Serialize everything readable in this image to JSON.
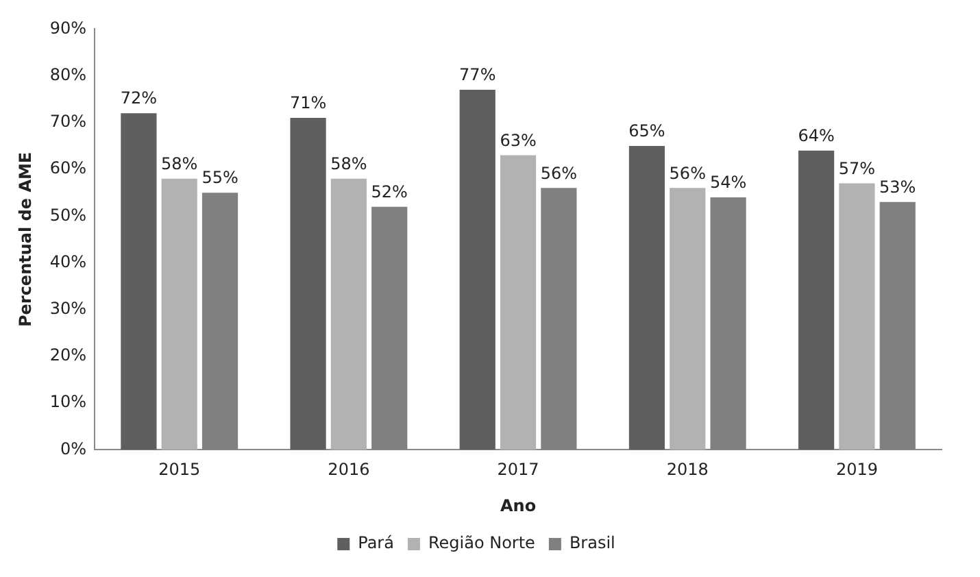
{
  "chart_data": {
    "type": "bar",
    "xlabel": "Ano",
    "ylabel": "Percentual de AME",
    "categories": [
      "2015",
      "2016",
      "2017",
      "2018",
      "2019"
    ],
    "series": [
      {
        "name": "Pará",
        "color": "#5f5f5f",
        "values": [
          72,
          71,
          77,
          65,
          64
        ],
        "value_labels": [
          "72%",
          "71%",
          "77%",
          "65%",
          "64%"
        ]
      },
      {
        "name": "Região Norte",
        "color": "#b2b2b2",
        "values": [
          58,
          58,
          63,
          56,
          57
        ],
        "value_labels": [
          "58%",
          "58%",
          "63%",
          "56%",
          "57%"
        ]
      },
      {
        "name": "Brasil",
        "color": "#808080",
        "values": [
          55,
          52,
          56,
          54,
          53
        ],
        "value_labels": [
          "55%",
          "52%",
          "56%",
          "54%",
          "53%"
        ]
      }
    ],
    "ylim": [
      0,
      90
    ],
    "yticks": [
      {
        "value": 0,
        "label": "0%"
      },
      {
        "value": 10,
        "label": "10%"
      },
      {
        "value": 20,
        "label": "20%"
      },
      {
        "value": 30,
        "label": "30%"
      },
      {
        "value": 40,
        "label": "40%"
      },
      {
        "value": 50,
        "label": "50%"
      },
      {
        "value": 60,
        "label": "60%"
      },
      {
        "value": 70,
        "label": "70%"
      },
      {
        "value": 80,
        "label": "80%"
      },
      {
        "value": 90,
        "label": "90%"
      }
    ],
    "grid": false,
    "legend": "bottom"
  }
}
